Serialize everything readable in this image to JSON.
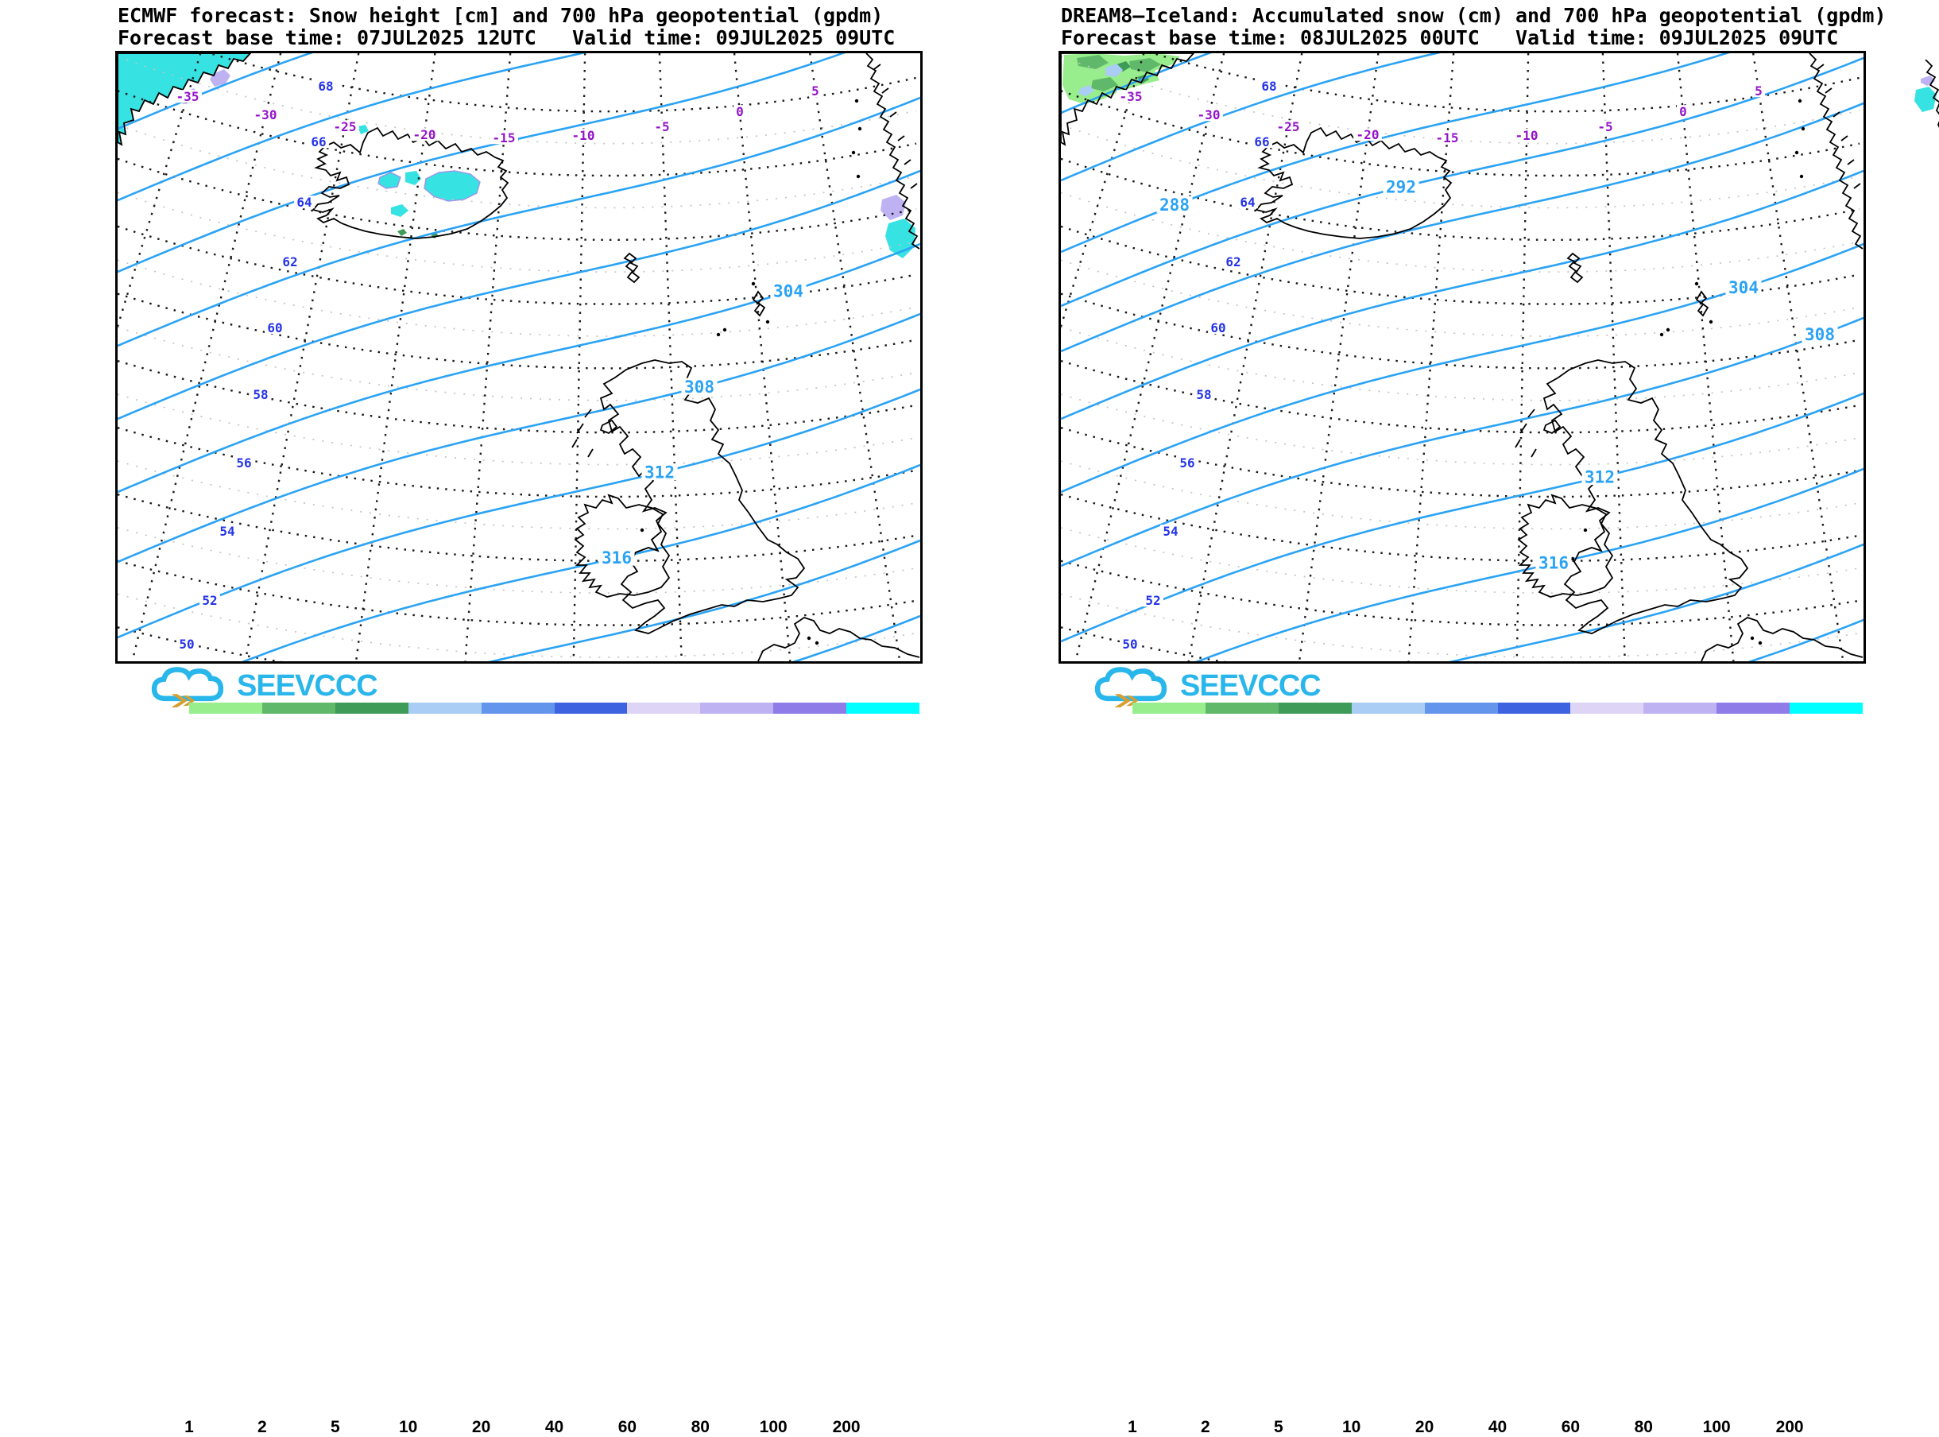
{
  "panels": [
    {
      "model": "ECMWF",
      "title_line1": "ECMWF forecast: Snow height [cm] and 700 hPa geopotential (gpdm)",
      "title_line2": "Forecast base time: 07JUL2025 12UTC   Valid time: 09JUL2025 09UTC",
      "logo_text": "SEEVCCC",
      "geopotential_labels": [
        "304",
        "308",
        "312",
        "316"
      ],
      "latitude_labels": [
        "68",
        "66",
        "64",
        "62",
        "60",
        "58",
        "56",
        "54",
        "52",
        "50"
      ],
      "longitude_labels": [
        "-35",
        "-30",
        "-25",
        "-20",
        "-15",
        "-10",
        "-5",
        "0",
        "5"
      ]
    },
    {
      "model": "DREAM8-Iceland",
      "title_line1": "DREAM8—Iceland: Accumulated snow (cm) and 700 hPa geopotential (gpdm)",
      "title_line2": "Forecast base time: 08JUL2025 00UTC   Valid time: 09JUL2025 09UTC",
      "logo_text": "SEEVCCC",
      "geopotential_labels": [
        "288",
        "292",
        "304",
        "308",
        "312",
        "316"
      ],
      "latitude_labels": [
        "68",
        "66",
        "64",
        "62",
        "60",
        "58",
        "56",
        "54",
        "52",
        "50"
      ],
      "longitude_labels": [
        "-35",
        "-30",
        "-25",
        "-20",
        "-15",
        "-10",
        "-5",
        "0",
        "5"
      ]
    }
  ],
  "colorbar": {
    "labels": [
      "1",
      "2",
      "5",
      "10",
      "20",
      "40",
      "60",
      "80",
      "100",
      "200"
    ],
    "unit": "cm"
  },
  "colors": {
    "contour_line": "#2BA3F5",
    "latitude_label": "#2433E8",
    "longitude_label": "#9414C9",
    "snow_cyan": "#36E2E2",
    "snow_purple": "#BFB2F2",
    "logo_cyan": "#29B6EA",
    "logo_gold": "#D89E2E",
    "scale": [
      "#98EE8C",
      "#60B96B",
      "#3E9B58",
      "#A9CDF4",
      "#6495EC",
      "#3D63E1",
      "#DDD4F6",
      "#BFB2F2",
      "#8F7CE8",
      "#00FFFF"
    ]
  }
}
